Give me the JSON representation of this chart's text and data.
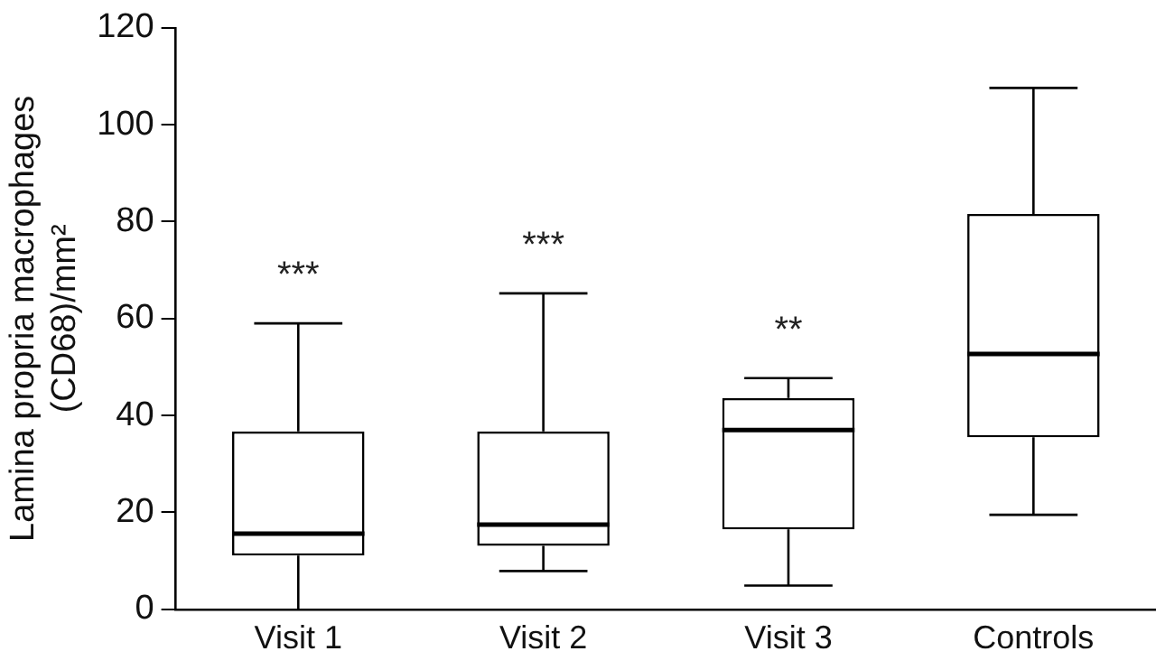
{
  "chart_data": {
    "type": "box",
    "ylabel": "Lamina propria macrophages\n(CD68)/mm²",
    "categories": [
      "Visit 1",
      "Visit 2",
      "Visit 3",
      "Controls"
    ],
    "boxes": [
      {
        "low": 0,
        "q1": 11.1,
        "median": 15.6,
        "q3": 36.7,
        "high": 59
      },
      {
        "low": 7.9,
        "q1": 13.1,
        "median": 17.5,
        "q3": 36.7,
        "high": 65.2
      },
      {
        "low": 4.9,
        "q1": 16.5,
        "median": 37,
        "q3": 43.6,
        "high": 47.7
      },
      {
        "low": 19.5,
        "q1": 35.5,
        "median": 52.7,
        "q3": 81.6,
        "high": 107.6
      }
    ],
    "color": "#000000",
    "ylim": [
      0,
      120
    ],
    "yticks": [
      0,
      20,
      40,
      60,
      80,
      100,
      120
    ],
    "grid": false,
    "annotations": [
      "***",
      "***",
      "**"
    ]
  }
}
